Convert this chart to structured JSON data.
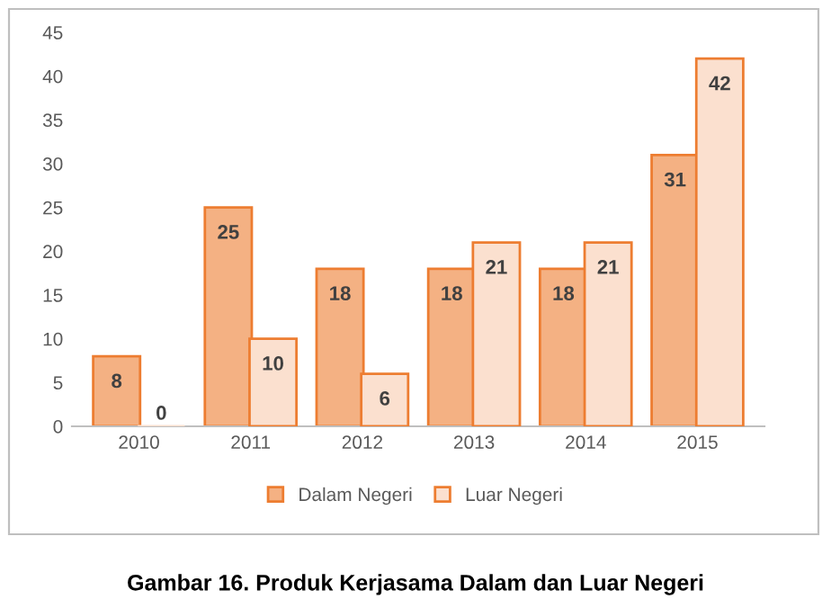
{
  "chart_data": {
    "type": "bar",
    "categories": [
      "2010",
      "2011",
      "2012",
      "2013",
      "2014",
      "2015"
    ],
    "series": [
      {
        "name": "Dalam Negeri",
        "color": "#f4b183",
        "values": [
          8,
          25,
          18,
          18,
          18,
          31
        ]
      },
      {
        "name": "Luar Negeri",
        "color": "#fbe0cf",
        "values": [
          0,
          10,
          6,
          21,
          21,
          42
        ]
      }
    ],
    "ylim": [
      0,
      45
    ],
    "yticks": [
      0,
      5,
      10,
      15,
      20,
      25,
      30,
      35,
      40,
      45
    ],
    "grid": false,
    "legend": "bottom",
    "data_labels": true,
    "annotations": [
      "Gambar 16. Produk Kerjasama Dalam dan Luar Negeri"
    ]
  }
}
